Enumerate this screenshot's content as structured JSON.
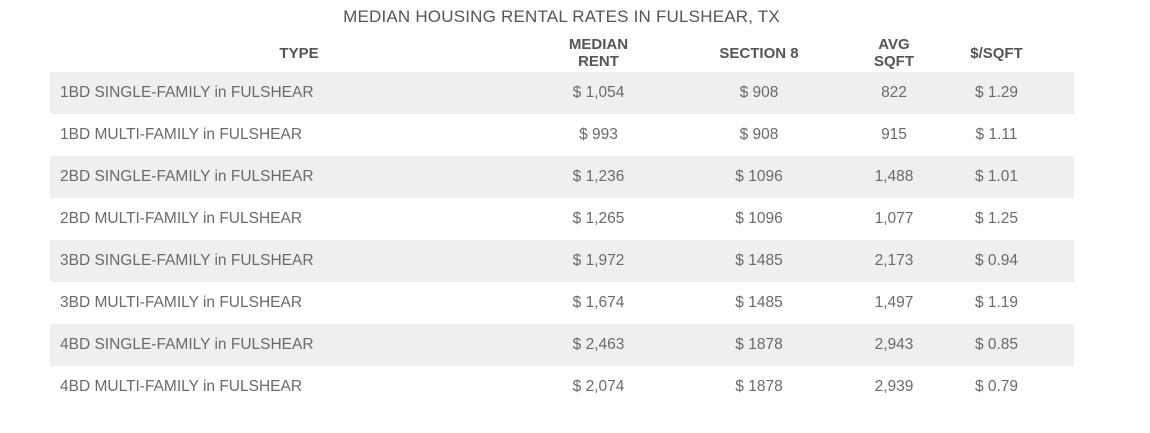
{
  "title": "MEDIAN HOUSING RENTAL RATES IN FULSHEAR, TX",
  "columns": [
    "TYPE",
    "MEDIAN RENT",
    "SECTION 8",
    "AVG SQFT",
    "$/SQFT"
  ],
  "rows": [
    {
      "type": "1BD SINGLE-FAMILY in FULSHEAR",
      "median_rent": "$ 1,054",
      "section8": "$ 908",
      "avg_sqft": "822",
      "per_sqft": "$ 1.29"
    },
    {
      "type": "1BD MULTI-FAMILY in FULSHEAR",
      "median_rent": "$ 993",
      "section8": "$ 908",
      "avg_sqft": "915",
      "per_sqft": "$ 1.11"
    },
    {
      "type": "2BD SINGLE-FAMILY in FULSHEAR",
      "median_rent": "$ 1,236",
      "section8": "$ 1096",
      "avg_sqft": "1,488",
      "per_sqft": "$ 1.01"
    },
    {
      "type": "2BD MULTI-FAMILY in FULSHEAR",
      "median_rent": "$ 1,265",
      "section8": "$ 1096",
      "avg_sqft": "1,077",
      "per_sqft": "$ 1.25"
    },
    {
      "type": "3BD SINGLE-FAMILY in FULSHEAR",
      "median_rent": "$ 1,972",
      "section8": "$ 1485",
      "avg_sqft": "2,173",
      "per_sqft": "$ 0.94"
    },
    {
      "type": "3BD MULTI-FAMILY in FULSHEAR",
      "median_rent": "$ 1,674",
      "section8": "$ 1485",
      "avg_sqft": "1,497",
      "per_sqft": "$ 1.19"
    },
    {
      "type": "4BD SINGLE-FAMILY in FULSHEAR",
      "median_rent": "$ 2,463",
      "section8": "$ 1878",
      "avg_sqft": "2,943",
      "per_sqft": "$ 0.85"
    },
    {
      "type": "4BD MULTI-FAMILY in FULSHEAR",
      "median_rent": "$ 2,074",
      "section8": "$ 1878",
      "avg_sqft": "2,939",
      "per_sqft": "$ 0.79"
    }
  ]
}
